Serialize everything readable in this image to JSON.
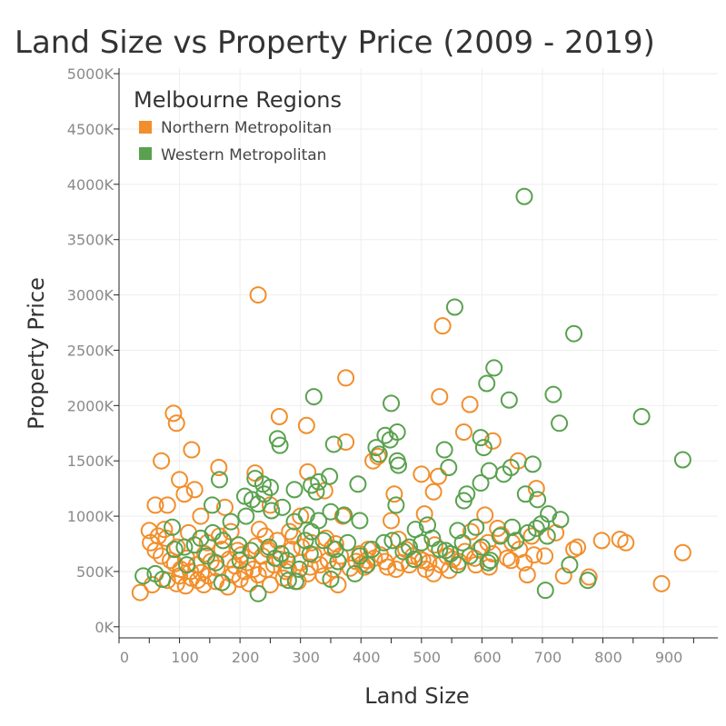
{
  "chart_data": {
    "type": "scatter",
    "title": "Land Size vs Property Price (2009 - 2019)",
    "xlabel": "Land Size",
    "ylabel": "Property Price",
    "xlim": [
      0,
      990
    ],
    "ylim": [
      -100000,
      5050000
    ],
    "x_ticks": [
      0,
      100,
      200,
      300,
      400,
      500,
      600,
      700,
      800,
      900
    ],
    "y_ticks": [
      0,
      500000,
      1000000,
      1500000,
      2000000,
      2500000,
      3000000,
      3500000,
      4000000,
      4500000,
      5000000
    ],
    "y_tick_labels": [
      "0K",
      "500K",
      "1000K",
      "1500K",
      "2000K",
      "2500K",
      "3000K",
      "3500K",
      "4000K",
      "4500K",
      "5000K"
    ],
    "grid": true,
    "marker": "hollow-circle",
    "legend": {
      "title": "Melbourne Regions",
      "position": "top-left"
    },
    "series": [
      {
        "name": "Northern Metropolitan",
        "color": "#F28E2B",
        "points": [
          [
            230,
            3000000
          ],
          [
            535,
            2720000
          ],
          [
            375,
            2250000
          ],
          [
            90,
            1930000
          ],
          [
            95,
            1840000
          ],
          [
            265,
            1900000
          ],
          [
            310,
            1820000
          ],
          [
            530,
            2080000
          ],
          [
            570,
            1760000
          ],
          [
            580,
            2010000
          ],
          [
            70,
            1500000
          ],
          [
            120,
            1600000
          ],
          [
            165,
            1440000
          ],
          [
            225,
            1390000
          ],
          [
            312,
            1400000
          ],
          [
            375,
            1670000
          ],
          [
            420,
            1500000
          ],
          [
            428,
            1540000
          ],
          [
            528,
            1360000
          ],
          [
            618,
            1680000
          ],
          [
            660,
            1500000
          ],
          [
            690,
            1250000
          ],
          [
            100,
            1330000
          ],
          [
            125,
            1240000
          ],
          [
            108,
            1200000
          ],
          [
            455,
            1200000
          ],
          [
            500,
            1380000
          ],
          [
            520,
            1220000
          ],
          [
            340,
            1230000
          ],
          [
            80,
            1100000
          ],
          [
            60,
            1100000
          ],
          [
            135,
            1000000
          ],
          [
            175,
            1080000
          ],
          [
            250,
            1100000
          ],
          [
            300,
            1000000
          ],
          [
            370,
            1000000
          ],
          [
            450,
            960000
          ],
          [
            505,
            1020000
          ],
          [
            605,
            1010000
          ],
          [
            50,
            870000
          ],
          [
            78,
            800000
          ],
          [
            115,
            850000
          ],
          [
            185,
            860000
          ],
          [
            232,
            880000
          ],
          [
            288,
            820000
          ],
          [
            318,
            760000
          ],
          [
            358,
            750000
          ],
          [
            412,
            700000
          ],
          [
            462,
            790000
          ],
          [
            522,
            740000
          ],
          [
            582,
            860000
          ],
          [
            632,
            830000
          ],
          [
            682,
            820000
          ],
          [
            722,
            850000
          ],
          [
            752,
            700000
          ],
          [
            758,
            720000
          ],
          [
            798,
            780000
          ],
          [
            828,
            790000
          ],
          [
            838,
            760000
          ],
          [
            932,
            670000
          ],
          [
            897,
            390000
          ],
          [
            777,
            450000
          ],
          [
            735,
            460000
          ],
          [
            675,
            470000
          ],
          [
            520,
            480000
          ],
          [
            35,
            310000
          ],
          [
            55,
            380000
          ],
          [
            80,
            420000
          ],
          [
            95,
            390000
          ],
          [
            110,
            370000
          ],
          [
            120,
            440000
          ],
          [
            140,
            380000
          ],
          [
            160,
            410000
          ],
          [
            180,
            360000
          ],
          [
            200,
            430000
          ],
          [
            215,
            390000
          ],
          [
            230,
            470000
          ],
          [
            250,
            380000
          ],
          [
            272,
            440000
          ],
          [
            296,
            410000
          ],
          [
            312,
            480000
          ],
          [
            338,
            460000
          ],
          [
            362,
            380000
          ],
          [
            382,
            530000
          ],
          [
            402,
            570000
          ],
          [
            422,
            620000
          ],
          [
            444,
            540000
          ],
          [
            466,
            580000
          ],
          [
            486,
            640000
          ],
          [
            507,
            520000
          ],
          [
            532,
            560000
          ],
          [
            552,
            610000
          ],
          [
            572,
            680000
          ],
          [
            596,
            700000
          ],
          [
            618,
            660000
          ],
          [
            642,
            620000
          ],
          [
            662,
            700000
          ],
          [
            686,
            650000
          ],
          [
            60,
            690000
          ],
          [
            70,
            640000
          ],
          [
            85,
            600000
          ],
          [
            92,
            570000
          ],
          [
            102,
            520000
          ],
          [
            112,
            620000
          ],
          [
            128,
            560000
          ],
          [
            136,
            490000
          ],
          [
            142,
            660000
          ],
          [
            152,
            590000
          ],
          [
            162,
            530000
          ],
          [
            170,
            700000
          ],
          [
            182,
            610000
          ],
          [
            192,
            550000
          ],
          [
            202,
            650000
          ],
          [
            212,
            580000
          ],
          [
            222,
            520000
          ],
          [
            237,
            640000
          ],
          [
            246,
            700000
          ],
          [
            256,
            560000
          ],
          [
            266,
            610000
          ],
          [
            276,
            500000
          ],
          [
            286,
            700000
          ],
          [
            300,
            580000
          ],
          [
            322,
            650000
          ],
          [
            332,
            560000
          ],
          [
            346,
            600000
          ],
          [
            352,
            710000
          ],
          [
            366,
            640000
          ],
          [
            392,
            590000
          ],
          [
            398,
            660000
          ],
          [
            410,
            600000
          ],
          [
            432,
            650000
          ],
          [
            440,
            590000
          ],
          [
            474,
            700000
          ],
          [
            496,
            620000
          ],
          [
            512,
            580000
          ],
          [
            542,
            640000
          ],
          [
            562,
            590000
          ],
          [
            588,
            620000
          ],
          [
            610,
            760000
          ],
          [
            626,
            890000
          ],
          [
            650,
            760000
          ],
          [
            670,
            580000
          ],
          [
            96,
            720000
          ],
          [
            146,
            760000
          ],
          [
            166,
            820000
          ],
          [
            196,
            690000
          ],
          [
            226,
            730000
          ],
          [
            242,
            820000
          ],
          [
            262,
            780000
          ],
          [
            282,
            860000
          ],
          [
            302,
            720000
          ],
          [
            342,
            800000
          ],
          [
            52,
            760000
          ],
          [
            65,
            820000
          ],
          [
            75,
            880000
          ],
          [
            100,
            460000
          ],
          [
            118,
            500000
          ],
          [
            130,
            420000
          ],
          [
            148,
            460000
          ],
          [
            188,
            470000
          ],
          [
            208,
            500000
          ],
          [
            244,
            520000
          ],
          [
            280,
            520000
          ],
          [
            316,
            540000
          ],
          [
            354,
            520000
          ],
          [
            406,
            540000
          ],
          [
            458,
            520000
          ],
          [
            480,
            560000
          ],
          [
            502,
            600000
          ],
          [
            546,
            510000
          ],
          [
            590,
            560000
          ],
          [
            612,
            540000
          ],
          [
            648,
            600000
          ],
          [
            704,
            640000
          ]
        ]
      },
      {
        "name": "Western Metropolitan",
        "color": "#59A14F",
        "points": [
          [
            670,
            3890000
          ],
          [
            555,
            2890000
          ],
          [
            752,
            2650000
          ],
          [
            620,
            2340000
          ],
          [
            608,
            2200000
          ],
          [
            322,
            2080000
          ],
          [
            450,
            2020000
          ],
          [
            645,
            2050000
          ],
          [
            718,
            2100000
          ],
          [
            728,
            1840000
          ],
          [
            864,
            1900000
          ],
          [
            262,
            1700000
          ],
          [
            266,
            1640000
          ],
          [
            355,
            1650000
          ],
          [
            425,
            1620000
          ],
          [
            430,
            1560000
          ],
          [
            440,
            1730000
          ],
          [
            448,
            1690000
          ],
          [
            460,
            1760000
          ],
          [
            460,
            1500000
          ],
          [
            462,
            1460000
          ],
          [
            538,
            1600000
          ],
          [
            545,
            1440000
          ],
          [
            598,
            1710000
          ],
          [
            603,
            1620000
          ],
          [
            932,
            1510000
          ],
          [
            684,
            1470000
          ],
          [
            225,
            1340000
          ],
          [
            238,
            1290000
          ],
          [
            250,
            1260000
          ],
          [
            290,
            1240000
          ],
          [
            318,
            1280000
          ],
          [
            326,
            1220000
          ],
          [
            330,
            1310000
          ],
          [
            348,
            1360000
          ],
          [
            395,
            1290000
          ],
          [
            598,
            1300000
          ],
          [
            612,
            1410000
          ],
          [
            636,
            1380000
          ],
          [
            648,
            1440000
          ],
          [
            672,
            1200000
          ],
          [
            692,
            1150000
          ],
          [
            575,
            1200000
          ],
          [
            570,
            1140000
          ],
          [
            154,
            1100000
          ],
          [
            166,
            1330000
          ],
          [
            208,
            1180000
          ],
          [
            220,
            1150000
          ],
          [
            230,
            1110000
          ],
          [
            240,
            1200000
          ],
          [
            252,
            1050000
          ],
          [
            270,
            1080000
          ],
          [
            290,
            950000
          ],
          [
            310,
            1010000
          ],
          [
            330,
            960000
          ],
          [
            350,
            1040000
          ],
          [
            372,
            1010000
          ],
          [
            398,
            960000
          ],
          [
            458,
            1100000
          ],
          [
            490,
            880000
          ],
          [
            510,
            920000
          ],
          [
            560,
            870000
          ],
          [
            590,
            900000
          ],
          [
            650,
            900000
          ],
          [
            690,
            890000
          ],
          [
            710,
            1020000
          ],
          [
            730,
            970000
          ],
          [
            745,
            560000
          ],
          [
            775,
            420000
          ],
          [
            705,
            330000
          ],
          [
            40,
            460000
          ],
          [
            60,
            480000
          ],
          [
            72,
            430000
          ],
          [
            92,
            700000
          ],
          [
            108,
            720000
          ],
          [
            125,
            740000
          ],
          [
            135,
            800000
          ],
          [
            155,
            850000
          ],
          [
            172,
            780000
          ],
          [
            198,
            740000
          ],
          [
            218,
            690000
          ],
          [
            248,
            720000
          ],
          [
            268,
            660000
          ],
          [
            278,
            600000
          ],
          [
            298,
            520000
          ],
          [
            308,
            780000
          ],
          [
            318,
            860000
          ],
          [
            338,
            780000
          ],
          [
            358,
            700000
          ],
          [
            378,
            760000
          ],
          [
            398,
            640000
          ],
          [
            418,
            700000
          ],
          [
            438,
            760000
          ],
          [
            452,
            780000
          ],
          [
            470,
            680000
          ],
          [
            480,
            720000
          ],
          [
            500,
            760000
          ],
          [
            518,
            800000
          ],
          [
            530,
            700000
          ],
          [
            548,
            660000
          ],
          [
            568,
            760000
          ],
          [
            580,
            640000
          ],
          [
            600,
            720000
          ],
          [
            614,
            600000
          ],
          [
            630,
            820000
          ],
          [
            656,
            780000
          ],
          [
            676,
            850000
          ],
          [
            698,
            930000
          ],
          [
            708,
            820000
          ],
          [
            280,
            420000
          ],
          [
            292,
            410000
          ],
          [
            350,
            430000
          ],
          [
            390,
            480000
          ],
          [
            230,
            300000
          ],
          [
            170,
            400000
          ],
          [
            185,
            950000
          ],
          [
            210,
            1000000
          ],
          [
            88,
            900000
          ],
          [
            112,
            560000
          ],
          [
            145,
            640000
          ],
          [
            160,
            580000
          ],
          [
            200,
            600000
          ],
          [
            258,
            620000
          ],
          [
            316,
            660000
          ],
          [
            362,
            590000
          ],
          [
            410,
            560000
          ],
          [
            488,
            610000
          ],
          [
            540,
            690000
          ],
          [
            560,
            560000
          ],
          [
            610,
            580000
          ]
        ]
      }
    ]
  }
}
